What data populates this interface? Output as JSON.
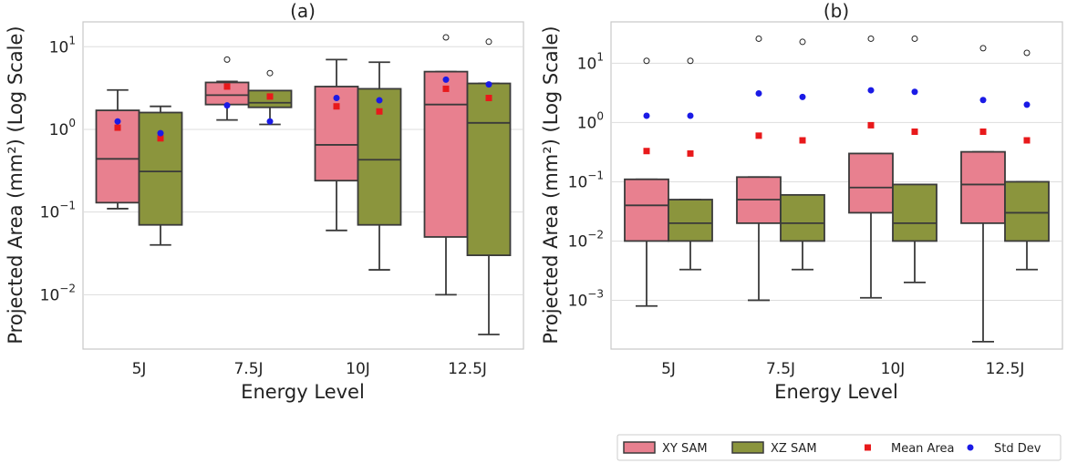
{
  "colors": {
    "xy_fill": "#e8808f",
    "xz_fill": "#8b953d",
    "box_edge": "#3a3a3a",
    "mean_marker": "#e8191b",
    "std_marker": "#1a1ae6",
    "outlier_edge": "#222222",
    "grid": "#dddddd",
    "frame": "#c8c8c8"
  },
  "legend": {
    "items": [
      {
        "label": "XY SAM",
        "kind": "box",
        "color_key": "xy_fill"
      },
      {
        "label": "XZ SAM",
        "kind": "box",
        "color_key": "xz_fill"
      },
      {
        "label": "Mean Area",
        "kind": "square",
        "color_key": "mean_marker"
      },
      {
        "label": "Std Dev",
        "kind": "dot",
        "color_key": "std_marker"
      }
    ]
  },
  "chart_data": [
    {
      "type": "box",
      "title": "(a)",
      "xlabel": "Energy Level",
      "ylabel": "Projected Area (mm²) (Log Scale)",
      "yscale": "log",
      "ylim": [
        0.0022,
        20
      ],
      "yticks": [
        {
          "value": 0.01,
          "base": "10",
          "exp": "−2"
        },
        {
          "value": 0.1,
          "base": "10",
          "exp": "−1"
        },
        {
          "value": 1,
          "base": "10",
          "exp": "0"
        },
        {
          "value": 10,
          "base": "10",
          "exp": "1"
        }
      ],
      "categories": [
        "5J",
        "7.5J",
        "10J",
        "12.5J"
      ],
      "series": [
        {
          "name": "XY SAM",
          "boxes": [
            {
              "whislo": 0.11,
              "q1": 0.13,
              "med": 0.44,
              "q3": 1.7,
              "whishi": 3.0,
              "mean": 1.05,
              "std": 1.25,
              "fliers": []
            },
            {
              "whislo": 1.3,
              "q1": 2.0,
              "med": 2.6,
              "q3": 3.7,
              "whishi": 3.8,
              "mean": 3.3,
              "std": 1.95,
              "fliers": [
                7.0
              ]
            },
            {
              "whislo": 0.06,
              "q1": 0.24,
              "med": 0.65,
              "q3": 3.3,
              "whishi": 7.0,
              "mean": 1.9,
              "std": 2.4,
              "fliers": []
            },
            {
              "whislo": 0.01,
              "q1": 0.05,
              "med": 2.0,
              "q3": 5.0,
              "whishi": 5.0,
              "mean": 3.1,
              "std": 4.0,
              "fliers": [
                13.0
              ]
            }
          ]
        },
        {
          "name": "XZ SAM",
          "boxes": [
            {
              "whislo": 0.04,
              "q1": 0.07,
              "med": 0.31,
              "q3": 1.6,
              "whishi": 1.9,
              "mean": 0.78,
              "std": 0.9,
              "fliers": []
            },
            {
              "whislo": 1.15,
              "q1": 1.85,
              "med": 2.1,
              "q3": 2.95,
              "whishi": 2.95,
              "mean": 2.5,
              "std": 1.25,
              "fliers": [
                4.8
              ]
            },
            {
              "whislo": 0.02,
              "q1": 0.07,
              "med": 0.43,
              "q3": 3.1,
              "whishi": 6.5,
              "mean": 1.65,
              "std": 2.25,
              "fliers": []
            },
            {
              "whislo": 0.0033,
              "q1": 0.03,
              "med": 1.2,
              "q3": 3.6,
              "whishi": 3.6,
              "mean": 2.4,
              "std": 3.5,
              "fliers": [
                11.5
              ]
            }
          ]
        }
      ]
    },
    {
      "type": "box",
      "title": "(b)",
      "xlabel": "Energy Level",
      "ylabel": "Projected Area (mm²) (Log Scale)",
      "yscale": "log",
      "ylim": [
        0.00015,
        50
      ],
      "yticks": [
        {
          "value": 0.001,
          "base": "10",
          "exp": "−3"
        },
        {
          "value": 0.01,
          "base": "10",
          "exp": "−2"
        },
        {
          "value": 0.1,
          "base": "10",
          "exp": "−1"
        },
        {
          "value": 1,
          "base": "10",
          "exp": "0"
        },
        {
          "value": 10,
          "base": "10",
          "exp": "1"
        }
      ],
      "categories": [
        "5J",
        "7.5J",
        "10J",
        "12.5J"
      ],
      "series": [
        {
          "name": "XY SAM",
          "boxes": [
            {
              "whislo": 0.0008,
              "q1": 0.01,
              "med": 0.04,
              "q3": 0.11,
              "whishi": 0.11,
              "mean": 0.33,
              "std": 1.3,
              "fliers": [
                11.0
              ]
            },
            {
              "whislo": 0.001,
              "q1": 0.02,
              "med": 0.05,
              "q3": 0.12,
              "whishi": 0.12,
              "mean": 0.6,
              "std": 3.1,
              "fliers": [
                26.0
              ]
            },
            {
              "whislo": 0.0011,
              "q1": 0.03,
              "med": 0.08,
              "q3": 0.3,
              "whishi": 0.3,
              "mean": 0.9,
              "std": 3.5,
              "fliers": [
                26.0
              ]
            },
            {
              "whislo": 0.0002,
              "q1": 0.02,
              "med": 0.09,
              "q3": 0.32,
              "whishi": 0.32,
              "mean": 0.7,
              "std": 2.4,
              "fliers": [
                18.0
              ]
            }
          ]
        },
        {
          "name": "XZ SAM",
          "boxes": [
            {
              "whislo": 0.0033,
              "q1": 0.01,
              "med": 0.02,
              "q3": 0.05,
              "whishi": 0.05,
              "mean": 0.3,
              "std": 1.3,
              "fliers": [
                11.0
              ]
            },
            {
              "whislo": 0.0033,
              "q1": 0.01,
              "med": 0.02,
              "q3": 0.06,
              "whishi": 0.06,
              "mean": 0.5,
              "std": 2.7,
              "fliers": [
                23.0
              ]
            },
            {
              "whislo": 0.002,
              "q1": 0.01,
              "med": 0.02,
              "q3": 0.09,
              "whishi": 0.09,
              "mean": 0.7,
              "std": 3.3,
              "fliers": [
                26.0
              ]
            },
            {
              "whislo": 0.0033,
              "q1": 0.01,
              "med": 0.03,
              "q3": 0.1,
              "whishi": 0.1,
              "mean": 0.5,
              "std": 2.0,
              "fliers": [
                15.0
              ]
            }
          ]
        }
      ]
    }
  ]
}
